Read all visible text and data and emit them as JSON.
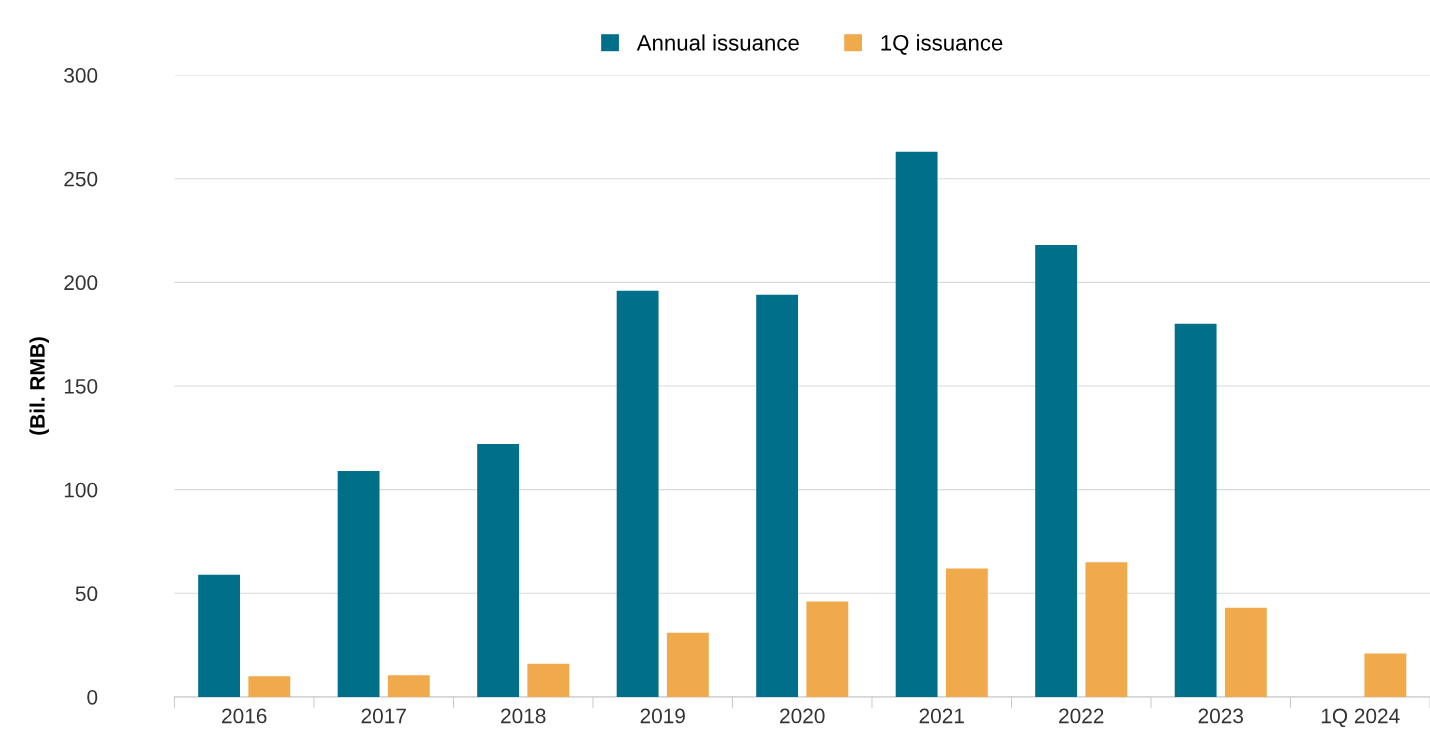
{
  "chart_data": {
    "type": "bar",
    "ylabel": "(Bil. RMB)",
    "categories": [
      "2016",
      "2017",
      "2018",
      "2019",
      "2020",
      "2021",
      "2022",
      "2023",
      "1Q 2024"
    ],
    "series": [
      {
        "name": "Annual issuance",
        "color": "#006f89",
        "values": [
          59,
          109,
          122,
          196,
          194,
          263,
          218,
          180,
          null
        ]
      },
      {
        "name": "1Q issuance",
        "color": "#f0a94b",
        "values": [
          10,
          10.5,
          16,
          31,
          46,
          62,
          65,
          43,
          21
        ]
      }
    ],
    "ylim": [
      0,
      300
    ],
    "yticks": [
      0,
      50,
      100,
      150,
      200,
      250,
      300
    ],
    "grid": "y",
    "legend": "top"
  }
}
